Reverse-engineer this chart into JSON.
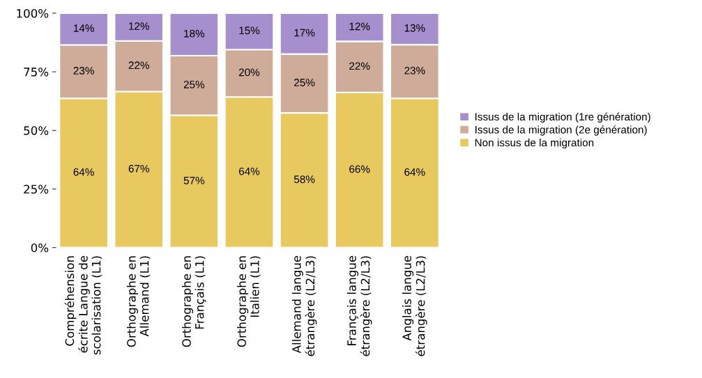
{
  "chart_data": {
    "type": "bar",
    "stacked": true,
    "categories": [
      "Compréhension\nécrite Langue de\nscolarisation (L1)",
      "Orthographe en\nAllemand (L1)",
      "Orthographe en\nFrançais (L1)",
      "Orthographe en\nItalien (L1)",
      "Allemand langue\nétrangère (L2/L3)",
      "Français langue\nétrangère (L2/L3)",
      "Anglais langue\nétrangère (L2/L3)"
    ],
    "series": [
      {
        "name": "Non issus de la migration",
        "color": "#e8c95f",
        "values": [
          63.7,
          66.6,
          56.5,
          64.3,
          57.5,
          66.2,
          63.7
        ],
        "value_labels": [
          "64%",
          "67%",
          "57%",
          "64%",
          "58%",
          "66%",
          "64%"
        ]
      },
      {
        "name": "Issus de la migration (2e génération)",
        "color": "#cfac99",
        "values": [
          22.8,
          21.6,
          25.4,
          20.2,
          25.1,
          21.8,
          22.9
        ],
        "value_labels": [
          "23%",
          "22%",
          "25%",
          "20%",
          "25%",
          "22%",
          "23%"
        ]
      },
      {
        "name": "Issus de la migration (1re génération)",
        "color": "#a58fcc",
        "values": [
          13.5,
          11.8,
          18.1,
          15.5,
          17.4,
          12.0,
          13.4
        ],
        "value_labels": [
          "14%",
          "12%",
          "18%",
          "15%",
          "17%",
          "12%",
          "13%"
        ]
      }
    ],
    "ylim": [
      0,
      100
    ],
    "yticks": [
      {
        "value": 0,
        "label": "0%"
      },
      {
        "value": 25,
        "label": "25%"
      },
      {
        "value": 50,
        "label": "50%"
      },
      {
        "value": 75,
        "label": "75%"
      },
      {
        "value": 100,
        "label": "100%"
      }
    ],
    "grid": false,
    "legend": "right"
  }
}
